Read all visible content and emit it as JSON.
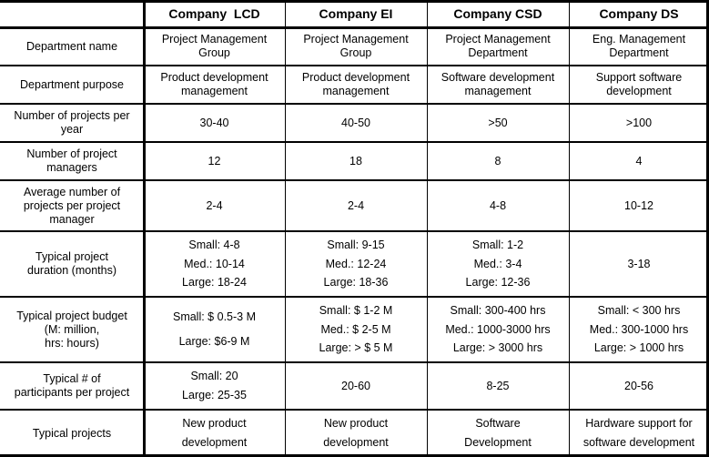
{
  "columns": [
    "",
    "Company  LCD",
    "Company EI",
    "Company CSD",
    "Company DS"
  ],
  "rows": [
    {
      "label": [
        "Department name"
      ],
      "cells": [
        [
          "Project Management",
          "Group"
        ],
        [
          "Project Management",
          "Group"
        ],
        [
          "Project Management",
          "Department"
        ],
        [
          "Eng. Management",
          "Department"
        ]
      ]
    },
    {
      "label": [
        "Department purpose"
      ],
      "cells": [
        [
          "Product development",
          "management"
        ],
        [
          "Product development",
          "management"
        ],
        [
          "Software development",
          "management"
        ],
        [
          "Support software",
          "development"
        ]
      ]
    },
    {
      "label": [
        "Number of projects per",
        "year"
      ],
      "cells": [
        [
          "30-40"
        ],
        [
          "40-50"
        ],
        [
          ">50"
        ],
        [
          ">100"
        ]
      ]
    },
    {
      "label": [
        "Number of project",
        "managers"
      ],
      "cells": [
        [
          "12"
        ],
        [
          "18"
        ],
        [
          "8"
        ],
        [
          "4"
        ]
      ]
    },
    {
      "label": [
        "Average number of",
        "projects per project",
        "manager"
      ],
      "cells": [
        [
          "2-4"
        ],
        [
          "2-4"
        ],
        [
          "4-8"
        ],
        [
          "10-12"
        ]
      ]
    },
    {
      "label": [
        "Typical project",
        "duration  (months)"
      ],
      "cells": [
        [
          "Small: 4-8",
          "Med.: 10-14",
          "Large: 18-24"
        ],
        [
          "Small: 9-15",
          "Med.: 12-24",
          "Large: 18-36"
        ],
        [
          "Small: 1-2",
          "Med.: 3-4",
          "Large: 12-36"
        ],
        [
          "3-18"
        ]
      ]
    },
    {
      "label": [
        "Typical project budget",
        "(M: million,",
        "hrs: hours)"
      ],
      "cells": [
        [
          "Small: $ 0.5-3 M",
          "Large: $6-9 M"
        ],
        [
          "Small: $ 1-2 M",
          "Med.: $ 2-5 M",
          "Large: > $ 5 M"
        ],
        [
          "Small: 300-400 hrs",
          "Med.: 1000-3000 hrs",
          "Large: > 3000 hrs"
        ],
        [
          "Small: < 300 hrs",
          "Med.: 300-1000 hrs",
          "Large: > 1000 hrs"
        ]
      ]
    },
    {
      "label": [
        "Typical # of",
        "participants per project"
      ],
      "cells": [
        [
          "Small: 20",
          "Large: 25-35"
        ],
        [
          "20-60"
        ],
        [
          "8-25"
        ],
        [
          "20-56"
        ]
      ]
    },
    {
      "label": [
        "Typical projects"
      ],
      "cells": [
        [
          "New product",
          "development"
        ],
        [
          "New product",
          "development"
        ],
        [
          "Software",
          "Development"
        ],
        [
          "Hardware support for",
          "software development"
        ]
      ]
    }
  ]
}
